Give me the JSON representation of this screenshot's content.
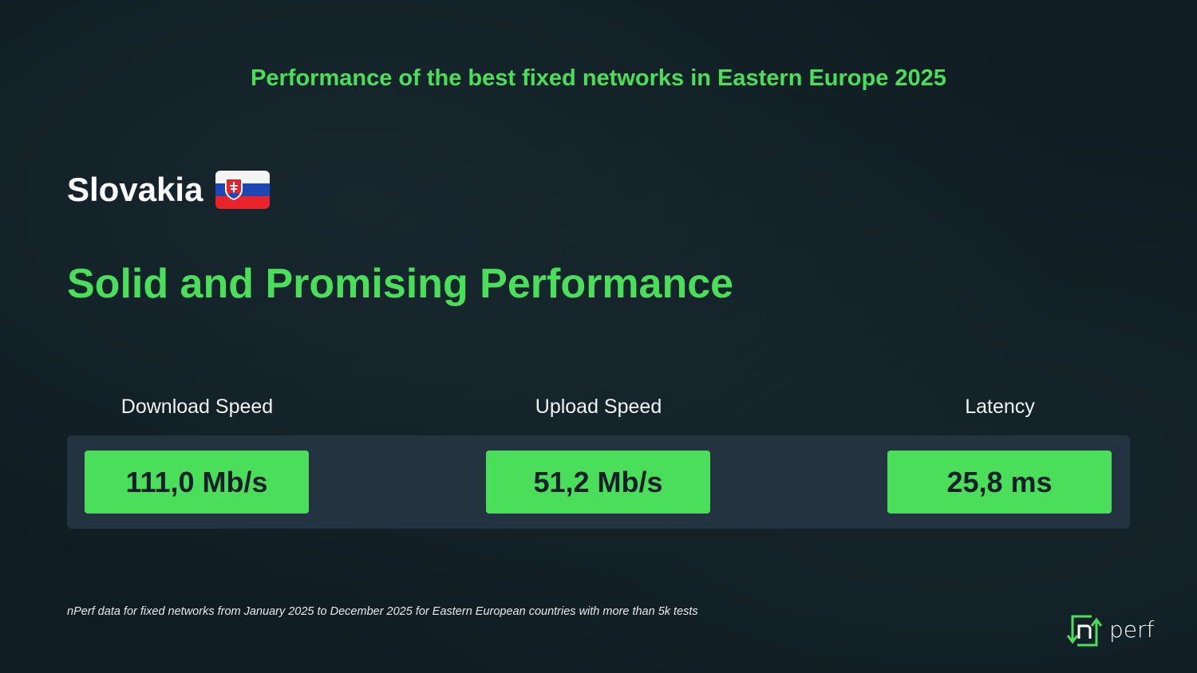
{
  "header": {
    "title": "Performance of the best fixed networks in Eastern Europe 2025"
  },
  "country": {
    "name": "Slovakia",
    "flag_icon": "slovakia-flag-icon"
  },
  "headline": "Solid and Promising Performance",
  "metrics": [
    {
      "label": "Download Speed",
      "value": "111,0 Mb/s"
    },
    {
      "label": "Upload Speed",
      "value": "51,2 Mb/s"
    },
    {
      "label": "Latency",
      "value": "25,8 ms"
    }
  ],
  "footnote": "nPerf data for fixed networks from January 2025 to December 2025 for Eastern European countries with more than 5k tests",
  "logo": {
    "text": "nperf"
  },
  "colors": {
    "accent": "#4ade5a",
    "background": "#0f1c22",
    "panel": "#233440"
  }
}
